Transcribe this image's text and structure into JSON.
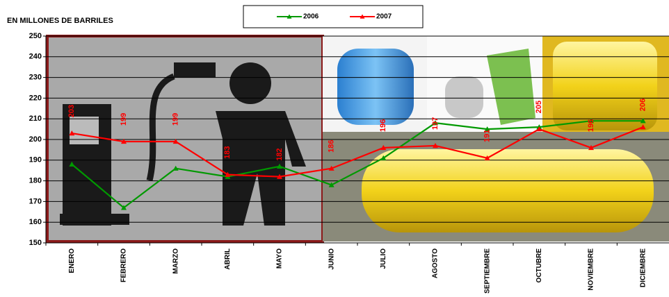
{
  "chart_data": {
    "type": "line",
    "y_axis_label": "EN MILLONES DE BARRILES",
    "categories": [
      "ENERO",
      "FEBRERO",
      "MARZO",
      "ABRIL",
      "MAYO",
      "JUNIO",
      "JULIO",
      "AGOSTO",
      "SEPTIEMBRE",
      "OCTUBRE",
      "NOVIEMBRE",
      "DICIEMBRE"
    ],
    "series": [
      {
        "name": "2006",
        "color": "#009900",
        "values": [
          188,
          167,
          186,
          182,
          187,
          178,
          191,
          208,
          205,
          206,
          209,
          209
        ]
      },
      {
        "name": "2007",
        "color": "#ff0000",
        "values": [
          203,
          199,
          199,
          183,
          182,
          186,
          196,
          197,
          191,
          205,
          196,
          206
        ],
        "data_labels": true
      }
    ],
    "ylim": [
      150,
      250
    ],
    "yticks": [
      150,
      160,
      170,
      180,
      190,
      200,
      210,
      220,
      230,
      240,
      250
    ],
    "grid": true,
    "legend": "top"
  }
}
